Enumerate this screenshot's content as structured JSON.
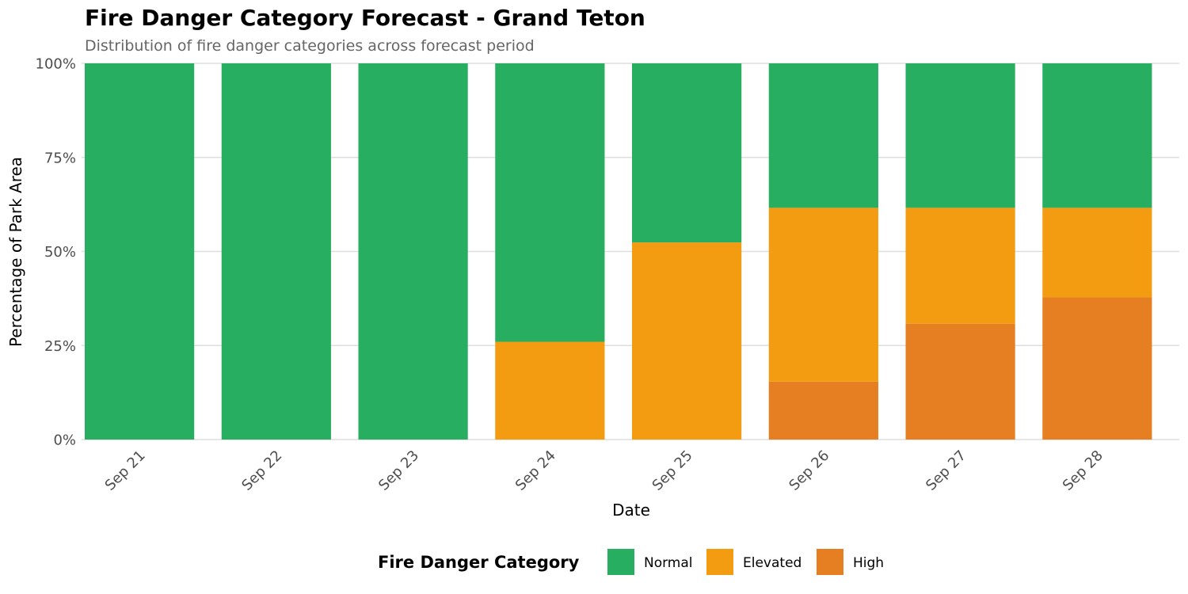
{
  "chart_data": {
    "type": "bar",
    "stacked": true,
    "title": "Fire Danger Category Forecast - Grand Teton",
    "subtitle": "Distribution of fire danger categories across forecast period",
    "xlabel": "Date",
    "ylabel": "Percentage of Park Area",
    "ylim": [
      0,
      100
    ],
    "y_ticks": [
      0,
      25,
      50,
      75,
      100
    ],
    "y_tick_labels": [
      "0%",
      "25%",
      "50%",
      "75%",
      "100%"
    ],
    "categories": [
      "Sep 21",
      "Sep 22",
      "Sep 23",
      "Sep 24",
      "Sep 25",
      "Sep 26",
      "Sep 27",
      "Sep 28"
    ],
    "series": [
      {
        "name": "High",
        "color": "#e67e22",
        "values": [
          0,
          0,
          0,
          0,
          0,
          15.4,
          30.8,
          37.8
        ]
      },
      {
        "name": "Elevated",
        "color": "#f39c12",
        "values": [
          0,
          0,
          0,
          26,
          52.4,
          46.2,
          30.8,
          23.8
        ]
      },
      {
        "name": "Normal",
        "color": "#27ae60",
        "values": [
          100,
          100,
          100,
          74,
          47.6,
          38.4,
          38.4,
          38.4
        ]
      }
    ],
    "legend": {
      "title": "Fire Danger Category",
      "position": "bottom",
      "order": [
        "Normal",
        "Elevated",
        "High"
      ]
    },
    "grid": true
  }
}
